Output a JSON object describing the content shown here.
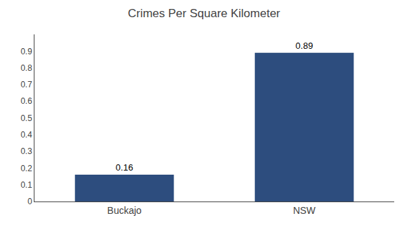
{
  "chart_data": {
    "type": "bar",
    "title": "Crimes Per Square Kilometer",
    "categories": [
      "Buckajo",
      "NSW"
    ],
    "values": [
      0.16,
      0.89
    ],
    "color": "#2d4d7e",
    "ylim": [
      0,
      1.0
    ],
    "yticks": [
      0,
      0.1,
      0.2,
      0.3,
      0.4,
      0.5,
      0.6,
      0.7,
      0.8,
      0.9
    ],
    "grid": false,
    "data_labels": true
  }
}
